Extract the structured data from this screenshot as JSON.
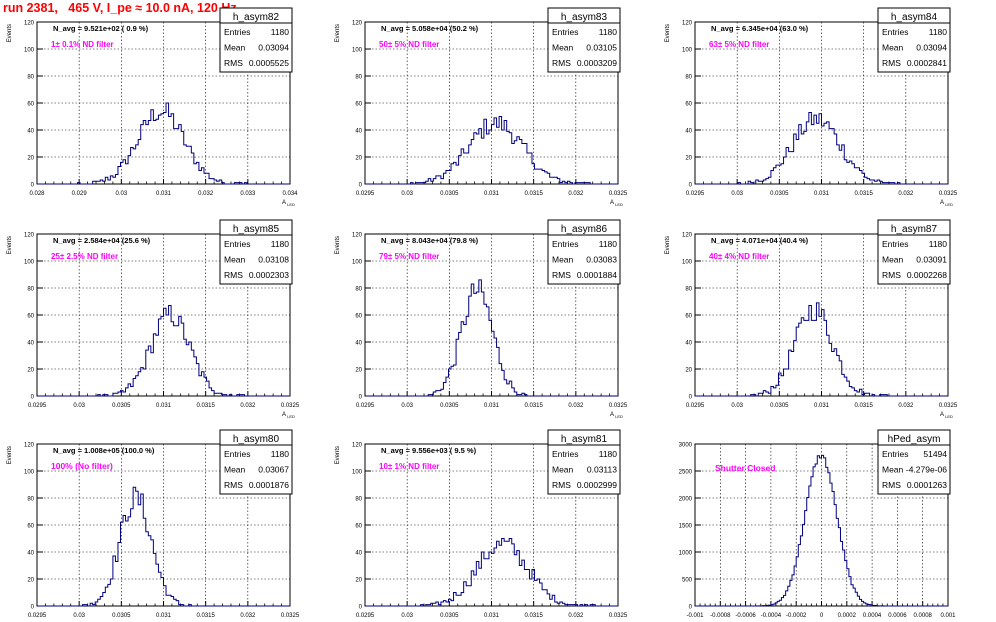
{
  "canvas": {
    "title": "run 2381,   465 V, I_pe ≈ 10.0 nA, 120 Hz",
    "stat_labels": {
      "entries": "Entries",
      "mean": "Mean",
      "rms": "RMS"
    },
    "colors": {
      "title": "#ff0000",
      "hist_line": "#000080",
      "filter_text": "#ff00ff",
      "grid": "#000000"
    }
  },
  "chart_data": [
    {
      "type": "histogram",
      "name": "h_asym82",
      "navg": "N_avg = 9.521e+02 ( 0.9 %)",
      "filter": "1± 0.1% ND filter",
      "stats": {
        "entries": "1180",
        "mean": "0.03094",
        "rms": "0.0005525"
      },
      "ylabel": "Events",
      "xlabel": "A",
      "xlim": [
        0.028,
        0.034
      ],
      "ylim": [
        0,
        120
      ],
      "xticks": [
        "0.028",
        "0.029",
        "0.03",
        "0.031",
        "0.032",
        "0.033",
        "0.034"
      ],
      "yticks": [
        "0",
        "20",
        "40",
        "60",
        "80",
        "100",
        "120"
      ],
      "dist": {
        "center": 0.03094,
        "sigma": 0.00055,
        "peak": 54
      }
    },
    {
      "type": "histogram",
      "name": "h_asym83",
      "navg": "N_avg = 5.058e+04 (50.2 %)",
      "filter": "50± 5% ND filter",
      "stats": {
        "entries": "1180",
        "mean": "0.03105",
        "rms": "0.0003209"
      },
      "ylabel": "Events",
      "xlabel": "A",
      "xlim": [
        0.0295,
        0.0325
      ],
      "ylim": [
        0,
        120
      ],
      "xticks": [
        "0.0295",
        "0.03",
        "0.0305",
        "0.031",
        "0.0315",
        "0.032",
        "0.0325"
      ],
      "yticks": [
        "0",
        "20",
        "40",
        "60",
        "80",
        "100",
        "120"
      ],
      "dist": {
        "center": 0.03105,
        "sigma": 0.00032,
        "peak": 45
      }
    },
    {
      "type": "histogram",
      "name": "h_asym84",
      "navg": "N_avg = 6.345e+04 (63.0 %)",
      "filter": "63± 5% ND filter",
      "stats": {
        "entries": "1180",
        "mean": "0.03094",
        "rms": "0.0002841"
      },
      "ylabel": "Events",
      "xlabel": "A",
      "xlim": [
        0.0295,
        0.0325
      ],
      "ylim": [
        0,
        120
      ],
      "xticks": [
        "0.0295",
        "0.03",
        "0.0305",
        "0.031",
        "0.0315",
        "0.032",
        "0.0325"
      ],
      "yticks": [
        "0",
        "20",
        "40",
        "60",
        "80",
        "100",
        "120"
      ],
      "dist": {
        "center": 0.03094,
        "sigma": 0.000284,
        "peak": 48
      }
    },
    {
      "type": "histogram",
      "name": "h_asym85",
      "navg": "N_avg = 2.584e+04 (25.6 %)",
      "filter": "25± 2.5% ND filter",
      "stats": {
        "entries": "1180",
        "mean": "0.03108",
        "rms": "0.0002303"
      },
      "ylabel": "Events",
      "xlabel": "A",
      "xlim": [
        0.0295,
        0.0325
      ],
      "ylim": [
        0,
        120
      ],
      "xticks": [
        "0.0295",
        "0.03",
        "0.0305",
        "0.031",
        "0.0315",
        "0.032",
        "0.0325"
      ],
      "yticks": [
        "0",
        "20",
        "40",
        "60",
        "80",
        "100",
        "120"
      ],
      "dist": {
        "center": 0.03108,
        "sigma": 0.00023,
        "peak": 60
      }
    },
    {
      "type": "histogram",
      "name": "h_asym86",
      "navg": "N_avg = 8.043e+04 (79.8 %)",
      "filter": "79± 5% ND filter",
      "stats": {
        "entries": "1180",
        "mean": "0.03083",
        "rms": "0.0001884"
      },
      "ylabel": "Events",
      "xlabel": "A",
      "xlim": [
        0.0295,
        0.0325
      ],
      "ylim": [
        0,
        120
      ],
      "xticks": [
        "0.0295",
        "0.03",
        "0.0305",
        "0.031",
        "0.0315",
        "0.032",
        "0.0325"
      ],
      "yticks": [
        "0",
        "20",
        "40",
        "60",
        "80",
        "100",
        "120"
      ],
      "dist": {
        "center": 0.03083,
        "sigma": 0.000188,
        "peak": 78
      }
    },
    {
      "type": "histogram",
      "name": "h_asym87",
      "navg": "N_avg = 4.071e+04 (40.4 %)",
      "filter": "40± 4% ND filter",
      "stats": {
        "entries": "1180",
        "mean": "0.03091",
        "rms": "0.0002268"
      },
      "ylabel": "Events",
      "xlabel": "A",
      "xlim": [
        0.0295,
        0.0325
      ],
      "ylim": [
        0,
        120
      ],
      "xticks": [
        "0.0295",
        "0.03",
        "0.0305",
        "0.031",
        "0.0315",
        "0.032",
        "0.0325"
      ],
      "yticks": [
        "0",
        "20",
        "40",
        "60",
        "80",
        "100",
        "120"
      ],
      "dist": {
        "center": 0.03091,
        "sigma": 0.000227,
        "peak": 64
      }
    },
    {
      "type": "histogram",
      "name": "h_asym80",
      "navg": "N_avg = 1.008e+05 (100.0 %)",
      "filter": "100% (No filter)",
      "stats": {
        "entries": "1180",
        "mean": "0.03067",
        "rms": "0.0001876"
      },
      "ylabel": "Events",
      "xlabel": "A",
      "xlim": [
        0.0295,
        0.0325
      ],
      "ylim": [
        0,
        120
      ],
      "xticks": [
        "0.0295",
        "0.03",
        "0.0305",
        "0.031",
        "0.0315",
        "0.032",
        "0.0325"
      ],
      "yticks": [
        "0",
        "20",
        "40",
        "60",
        "80",
        "100",
        "120"
      ],
      "dist": {
        "center": 0.03067,
        "sigma": 0.000188,
        "peak": 80
      }
    },
    {
      "type": "histogram",
      "name": "h_asym81",
      "navg": "N_avg = 9.556e+03 ( 9.5 %)",
      "filter": "10± 1% ND filter",
      "stats": {
        "entries": "1180",
        "mean": "0.03113",
        "rms": "0.0002999"
      },
      "ylabel": "Events",
      "xlabel": "A",
      "xlim": [
        0.0295,
        0.0325
      ],
      "ylim": [
        0,
        120
      ],
      "xticks": [
        "0.0295",
        "0.03",
        "0.0305",
        "0.031",
        "0.0315",
        "0.032",
        "0.0325"
      ],
      "yticks": [
        "0",
        "20",
        "40",
        "60",
        "80",
        "100",
        "120"
      ],
      "dist": {
        "center": 0.03113,
        "sigma": 0.0003,
        "peak": 46
      }
    },
    {
      "type": "histogram",
      "name": "hPed_asym",
      "navg": "",
      "filter": "Shutter Closed",
      "stats": {
        "entries": "51494",
        "mean": "-4.279e-06",
        "rms": "0.0001263"
      },
      "ylabel": "",
      "xlabel": "",
      "xlim": [
        -0.001,
        0.001
      ],
      "ylim": [
        0,
        3500
      ],
      "xticks": [
        "-0.001",
        "-0.0008",
        "-0.0006",
        "-0.0004",
        "-0.0002",
        "0",
        "0.0002",
        "0.0004",
        "0.0006",
        "0.0008",
        "0.001"
      ],
      "yticks": [
        "0",
        "500",
        "1000",
        "1500",
        "2000",
        "2500",
        "3000"
      ],
      "dist": {
        "center": -4.3e-06,
        "sigma": 0.000126,
        "peak": 3250
      }
    }
  ]
}
